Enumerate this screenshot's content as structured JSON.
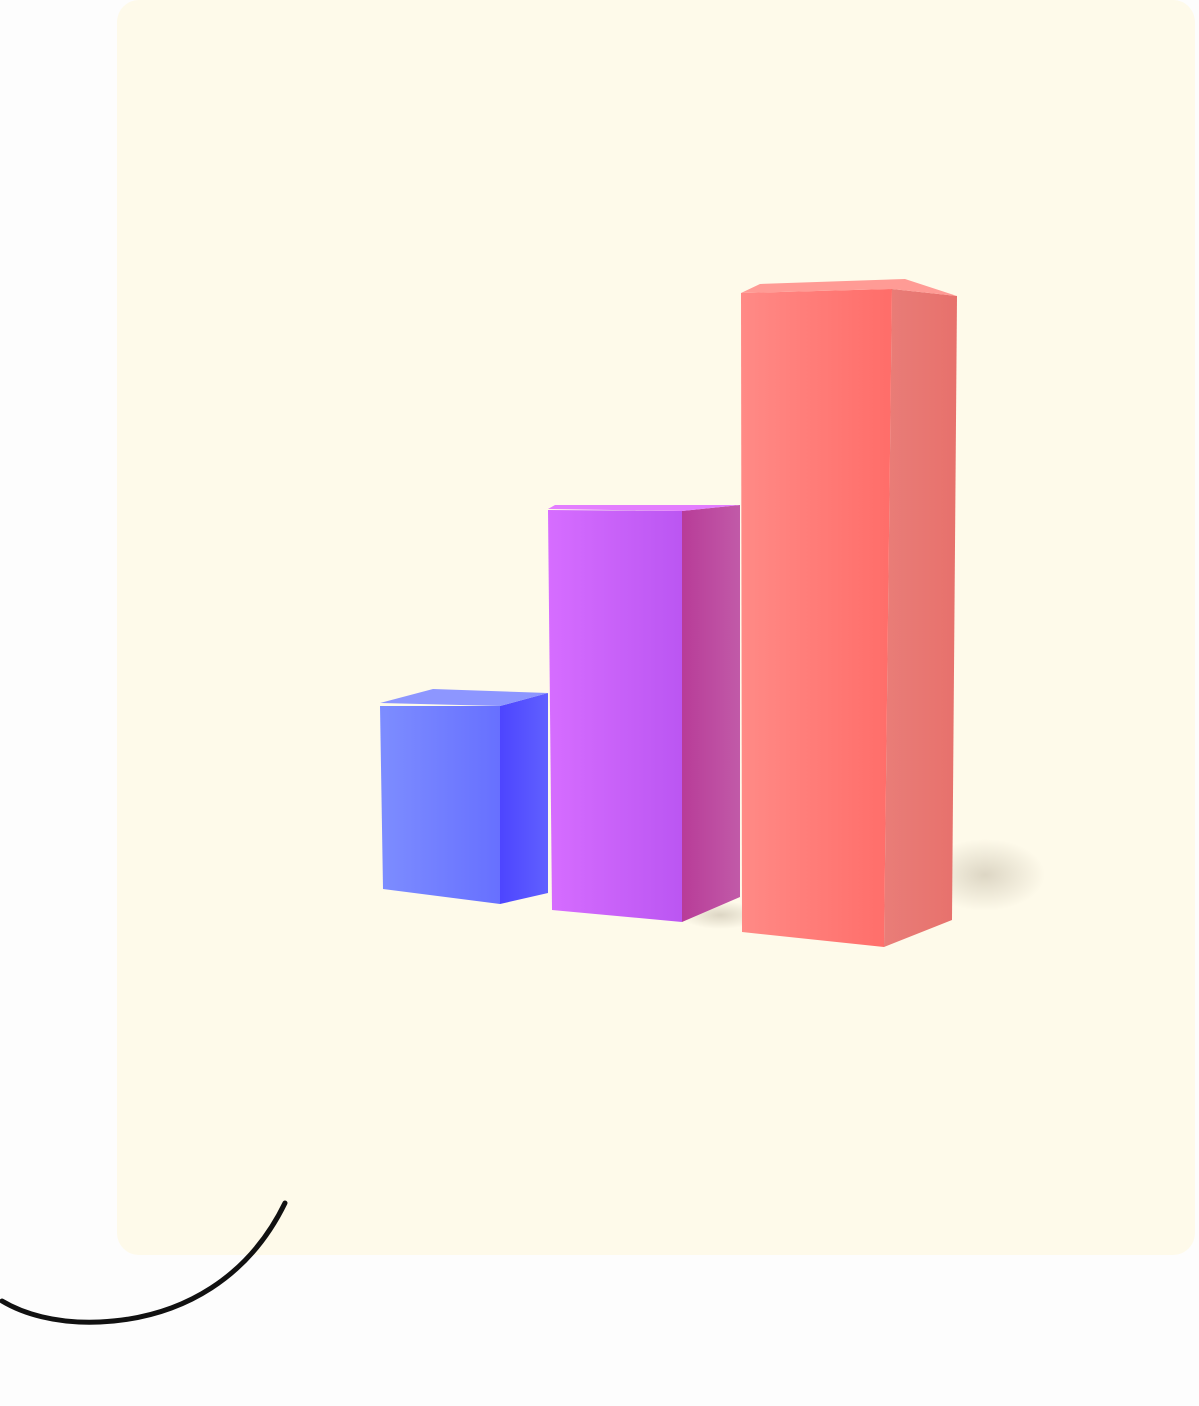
{
  "illustration": {
    "name": "3d-bar-chart-icon",
    "bars": [
      {
        "name": "short-bar",
        "level": 0.32,
        "colors": {
          "front_left": "#7c8cff",
          "front_right": "#5f6cff",
          "side": "#4f49ff",
          "top": "#8b94ff"
        }
      },
      {
        "name": "medium-bar",
        "level": 0.62,
        "colors": {
          "front_left": "#d56cff",
          "front_right": "#bc57f4",
          "side": "#b63b92",
          "top": "#e57cff"
        }
      },
      {
        "name": "tall-bar",
        "level": 1.0,
        "colors": {
          "front_left": "#ff8883",
          "front_right": "#ff6e6a",
          "side": "#e97a74",
          "top": "#ff9c96"
        }
      }
    ]
  },
  "colors": {
    "card_background": "#fefaea",
    "page_background": "#fdfdfd",
    "curve_stroke": "#111111"
  }
}
